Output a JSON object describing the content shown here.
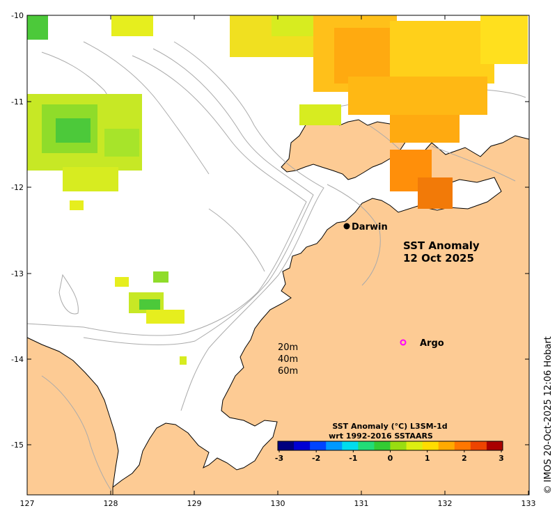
{
  "map": {
    "title_line1": "SST Anomaly",
    "title_line2": "12 Oct 2025",
    "credit": "© IMOS 20-Oct-2025 12:06 Hobart",
    "x_ticks": [
      "127",
      "128",
      "129",
      "130",
      "131",
      "132",
      "133"
    ],
    "y_ticks": [
      "-10",
      "-11",
      "-12",
      "-13",
      "-14",
      "-15"
    ],
    "places": {
      "darwin": "Darwin",
      "argo": "Argo"
    },
    "contours": {
      "c20": "20m",
      "c40": "40m",
      "c60": "60m"
    },
    "colorbar": {
      "line1": "SST Anomaly (°C) L3SM-1d",
      "line2": "wrt 1992-2016 SSTAARS",
      "ticks": [
        "-3",
        "-2",
        "-1",
        "0",
        "1",
        "2",
        "3"
      ],
      "colors": [
        "#00007f",
        "#0000d4",
        "#0044ff",
        "#0099ff",
        "#00ddee",
        "#22dd77",
        "#33cc33",
        "#99dd11",
        "#ddee11",
        "#ffdd00",
        "#ffaa00",
        "#ff7700",
        "#ee4400",
        "#aa0000"
      ]
    },
    "land_color": "#fdcb94",
    "argo_color": "#ff00ff"
  }
}
